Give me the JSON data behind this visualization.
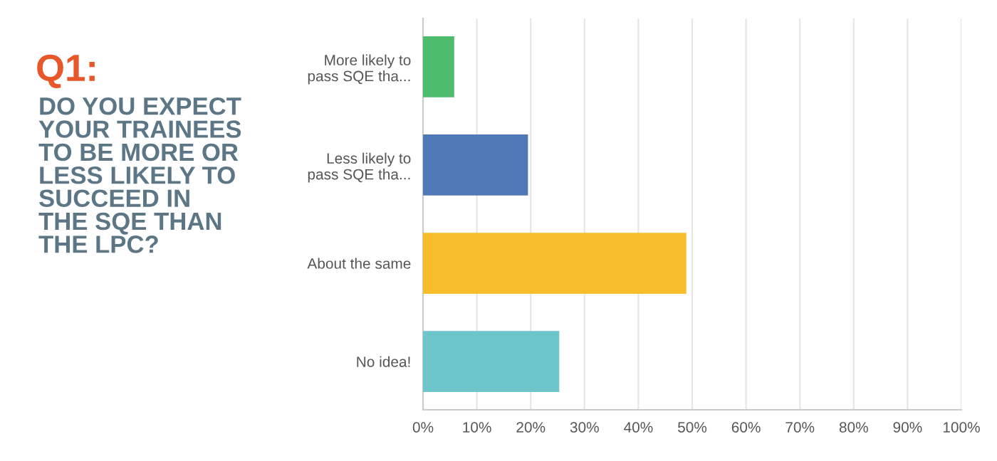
{
  "chart_data": {
    "type": "bar",
    "orientation": "horizontal",
    "title": "Q1:",
    "subtitle": "DO YOU EXPECT\nYOUR TRAINEES\nTO BE MORE OR\nLESS LIKELY TO\nSUCCEED IN\nTHE SQE THAN\nTHE LPC?",
    "categories": [
      "More likely to\npass SQE tha...",
      "Less likely to\npass SQE tha...",
      "About the same",
      "No idea!"
    ],
    "values": [
      5.8,
      19.5,
      48.9,
      25.3
    ],
    "colors": [
      "#4dbd6d",
      "#4f79b6",
      "#f8bd2b",
      "#6bc5cb"
    ],
    "xlim": [
      0,
      100
    ],
    "xticks": [
      {
        "value": 0,
        "label": "0%"
      },
      {
        "value": 10,
        "label": "10%"
      },
      {
        "value": 20,
        "label": "20%"
      },
      {
        "value": 30,
        "label": "30%"
      },
      {
        "value": 40,
        "label": "40%"
      },
      {
        "value": 50,
        "label": "50%"
      },
      {
        "value": 60,
        "label": "60%"
      },
      {
        "value": 70,
        "label": "70%"
      },
      {
        "value": 80,
        "label": "80%"
      },
      {
        "value": 90,
        "label": "90%"
      },
      {
        "value": 100,
        "label": "100%"
      }
    ],
    "grid": "x",
    "legend": false
  }
}
